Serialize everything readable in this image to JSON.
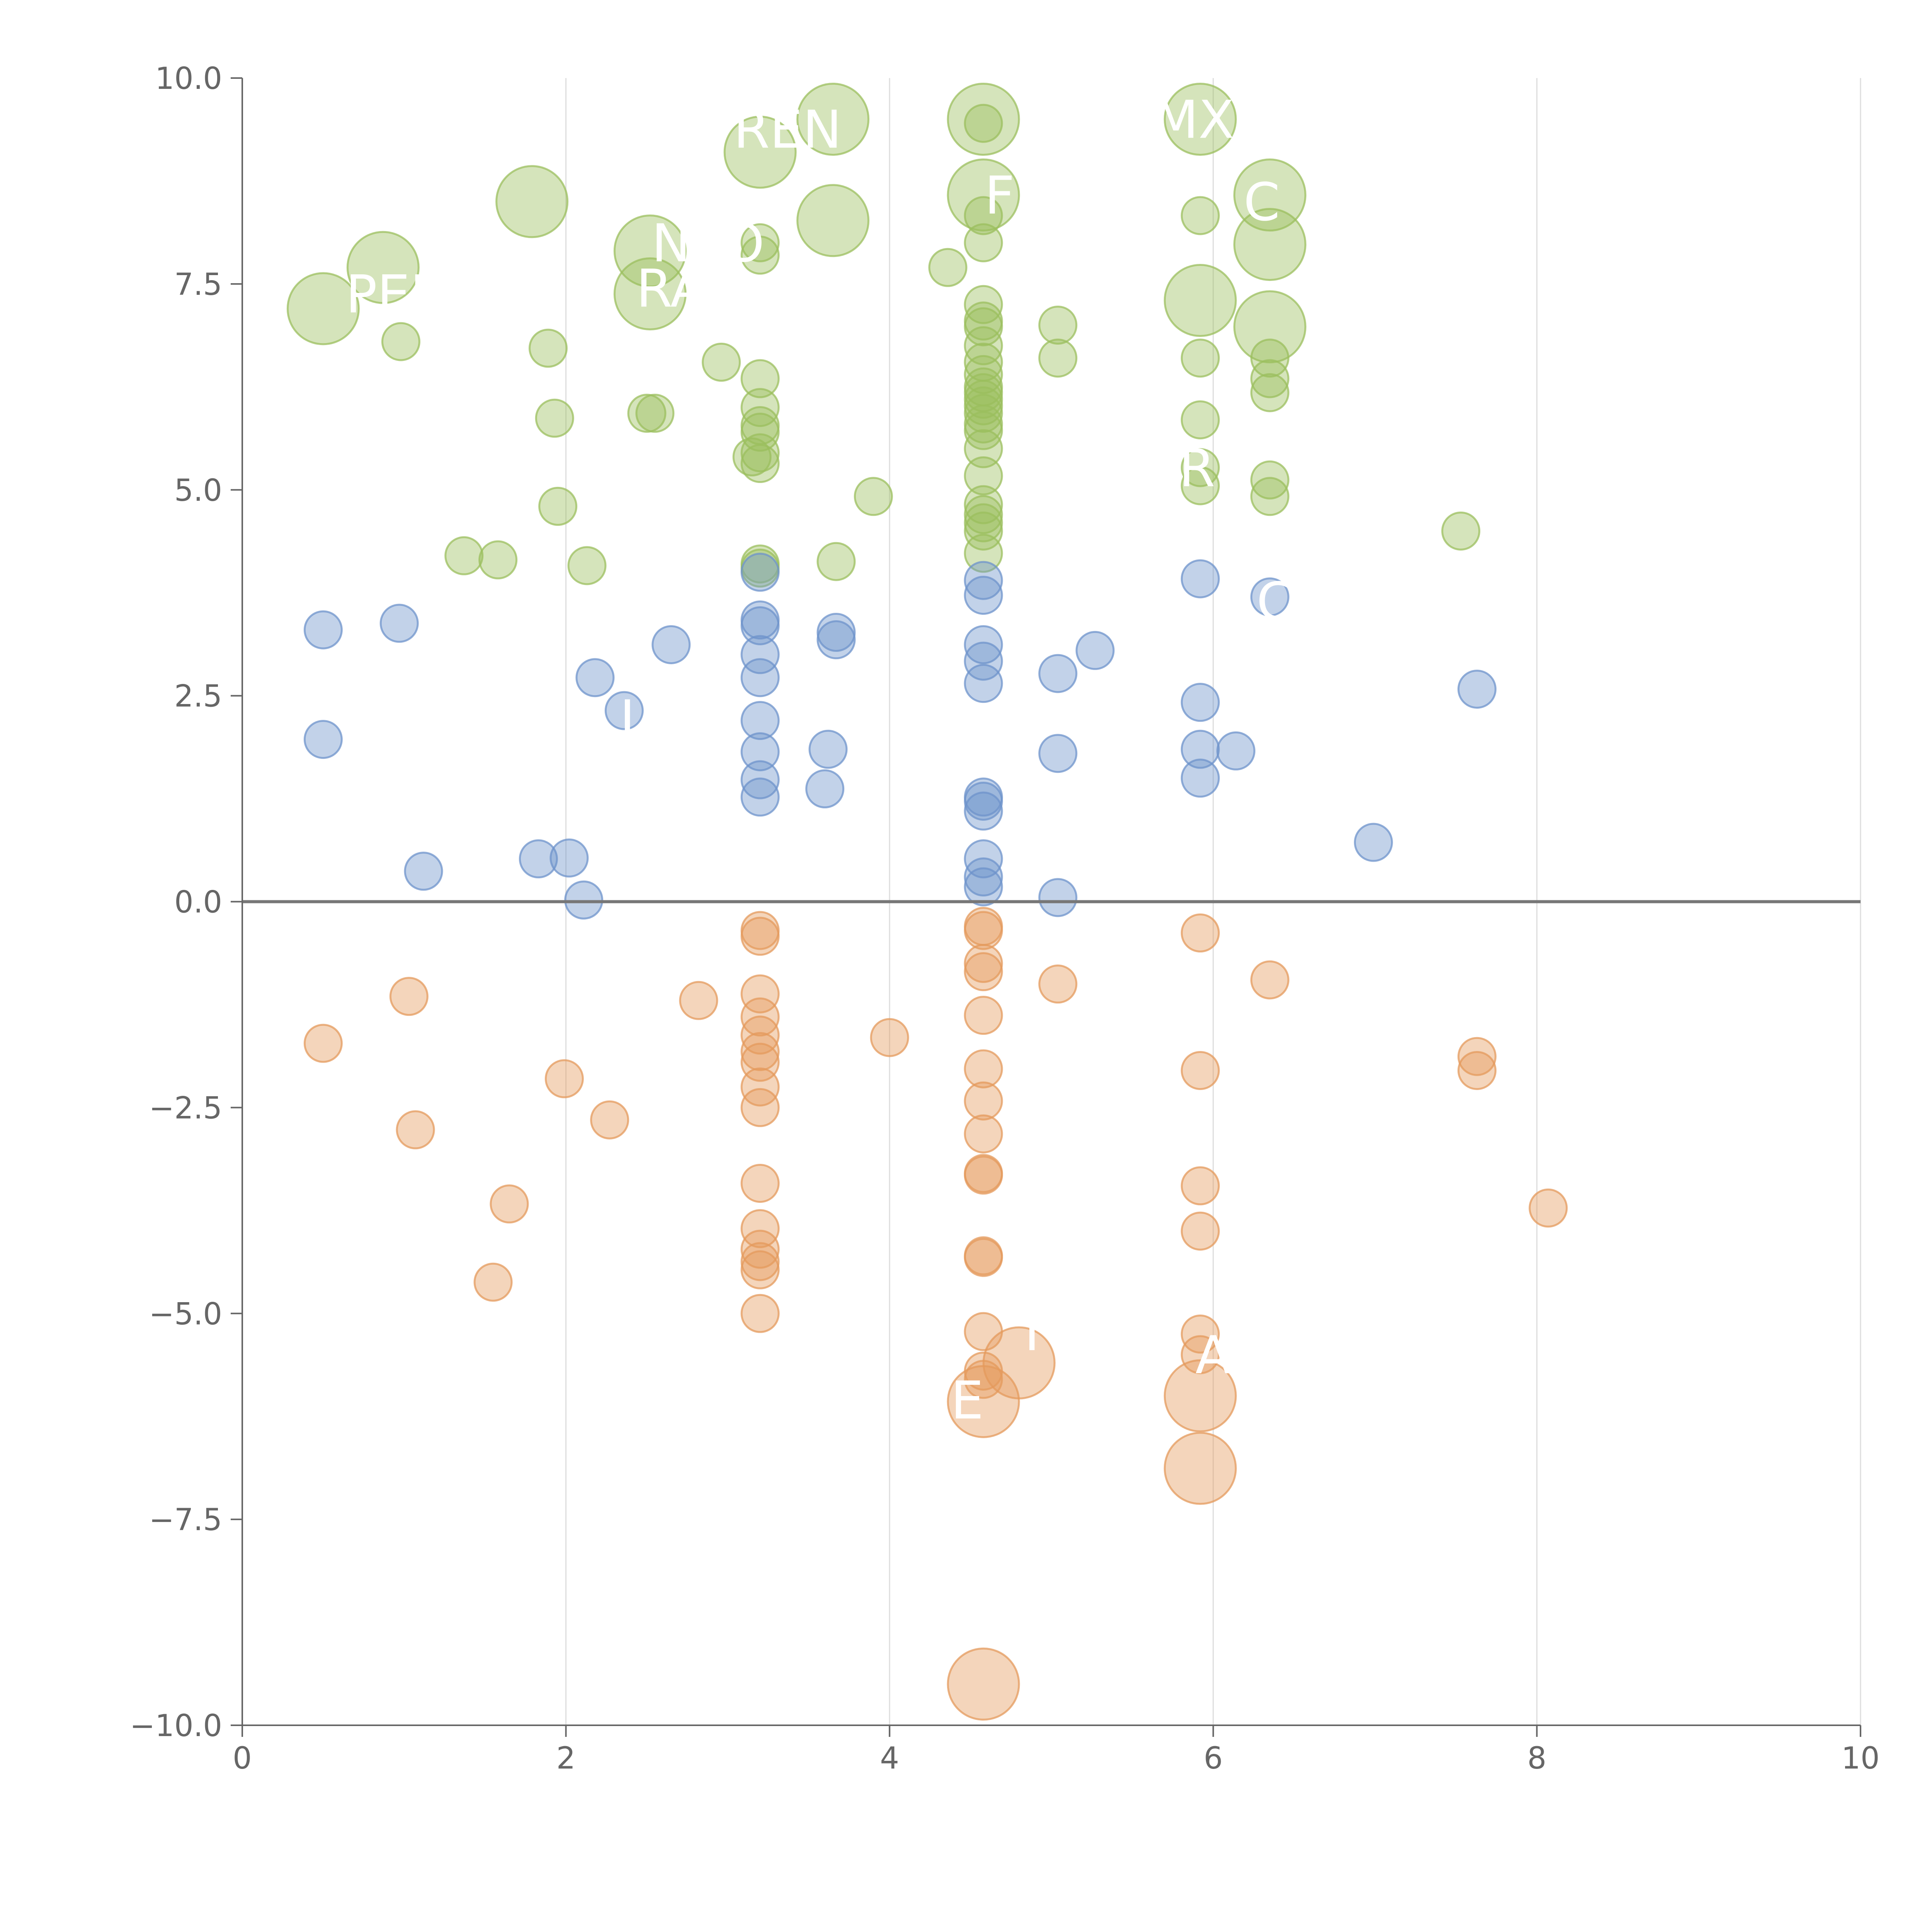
{
  "chart_data": {
    "type": "scatter",
    "xlim": [
      0,
      10
    ],
    "ylim": [
      -10,
      10
    ],
    "x_ticks": [
      0,
      2,
      4,
      6,
      8,
      10
    ],
    "x_tick_labels": [
      "0",
      "2",
      "4",
      "6",
      "8",
      "10"
    ],
    "y_ticks": [
      10,
      7.5,
      5,
      2.5,
      0,
      -2.5,
      -5,
      -7.5,
      -10
    ],
    "y_tick_labels": [
      "10.0",
      "7.5",
      "5.0",
      "2.5",
      "0.0",
      "−2.5",
      "−5.0",
      "−7.5",
      "−10.0"
    ],
    "grid_x": true,
    "grid_y": false,
    "zero_line": true,
    "colors": {
      "green": "#9bbf5e",
      "blue": "#6e93cb",
      "orange": "#e49a5c",
      "axis": "#666666",
      "grid": "#dddddd",
      "zero_line": "#777777"
    },
    "series": [
      {
        "color_key": "green",
        "points": [
          [
            0.5,
            7.2,
            3
          ],
          [
            0.87,
            7.7,
            3
          ],
          [
            0.98,
            6.8,
            1
          ],
          [
            1.37,
            4.2,
            1
          ],
          [
            1.58,
            4.15,
            1
          ],
          [
            1.79,
            8.5,
            3
          ],
          [
            1.89,
            6.72,
            1
          ],
          [
            1.93,
            5.87,
            1
          ],
          [
            1.95,
            4.8,
            1
          ],
          [
            2.13,
            4.08,
            1
          ],
          [
            2.5,
            5.93,
            1
          ],
          [
            2.55,
            5.93,
            1
          ],
          [
            2.52,
            7.9,
            3
          ],
          [
            2.52,
            7.38,
            3
          ],
          [
            2.96,
            6.55,
            1
          ],
          [
            3.15,
            5.4,
            1
          ],
          [
            3.2,
            9.1,
            3
          ],
          [
            3.2,
            8.0,
            1
          ],
          [
            3.2,
            7.85,
            1
          ],
          [
            3.2,
            6.35,
            1
          ],
          [
            3.2,
            6.0,
            1
          ],
          [
            3.2,
            5.78,
            1
          ],
          [
            3.2,
            5.7,
            1
          ],
          [
            3.2,
            5.45,
            1
          ],
          [
            3.2,
            5.32,
            1
          ],
          [
            3.2,
            4.1,
            1
          ],
          [
            3.2,
            4.05,
            1
          ],
          [
            3.65,
            9.5,
            3
          ],
          [
            3.65,
            8.27,
            3
          ],
          [
            3.67,
            4.13,
            1
          ],
          [
            3.9,
            4.92,
            1
          ],
          [
            4.36,
            7.7,
            1
          ],
          [
            4.58,
            9.5,
            3
          ],
          [
            4.58,
            9.45,
            1
          ],
          [
            4.58,
            8.58,
            3
          ],
          [
            4.58,
            8.33,
            1
          ],
          [
            4.58,
            8.0,
            1
          ],
          [
            4.58,
            7.25,
            1
          ],
          [
            4.58,
            7.05,
            1
          ],
          [
            4.58,
            6.98,
            1
          ],
          [
            4.58,
            6.75,
            1
          ],
          [
            4.58,
            6.55,
            1
          ],
          [
            4.58,
            6.4,
            1
          ],
          [
            4.58,
            6.25,
            1
          ],
          [
            4.58,
            6.18,
            1
          ],
          [
            4.58,
            6.1,
            1
          ],
          [
            4.58,
            6.02,
            1
          ],
          [
            4.58,
            5.93,
            1
          ],
          [
            4.58,
            5.8,
            1
          ],
          [
            4.58,
            5.72,
            1
          ],
          [
            4.58,
            5.5,
            1
          ],
          [
            4.58,
            5.17,
            1
          ],
          [
            4.58,
            4.82,
            1
          ],
          [
            4.58,
            4.7,
            1
          ],
          [
            4.58,
            4.6,
            1
          ],
          [
            4.58,
            4.5,
            1
          ],
          [
            4.58,
            4.23,
            1
          ],
          [
            5.04,
            7.0,
            1
          ],
          [
            5.04,
            6.6,
            1
          ],
          [
            5.92,
            9.5,
            3
          ],
          [
            5.92,
            8.33,
            1
          ],
          [
            5.92,
            7.3,
            3
          ],
          [
            5.92,
            6.6,
            1
          ],
          [
            5.92,
            5.85,
            1
          ],
          [
            5.92,
            5.27,
            1
          ],
          [
            5.92,
            5.05,
            1
          ],
          [
            6.35,
            8.58,
            3
          ],
          [
            6.35,
            7.98,
            3
          ],
          [
            6.35,
            6.98,
            3
          ],
          [
            6.35,
            6.6,
            1
          ],
          [
            6.35,
            6.35,
            1
          ],
          [
            6.35,
            6.18,
            1
          ],
          [
            6.35,
            5.12,
            1
          ],
          [
            6.35,
            4.92,
            1
          ],
          [
            7.53,
            4.5,
            1
          ]
        ]
      },
      {
        "color_key": "blue",
        "points": [
          [
            0.5,
            3.3,
            1
          ],
          [
            0.5,
            1.97,
            1
          ],
          [
            0.97,
            3.38,
            1
          ],
          [
            1.12,
            0.37,
            1
          ],
          [
            1.83,
            0.52,
            1
          ],
          [
            2.02,
            0.53,
            1
          ],
          [
            2.11,
            0.02,
            1
          ],
          [
            2.18,
            2.72,
            1
          ],
          [
            2.36,
            2.32,
            1
          ],
          [
            2.65,
            3.12,
            1
          ],
          [
            3.2,
            4.0,
            1
          ],
          [
            3.2,
            3.42,
            1
          ],
          [
            3.2,
            3.35,
            1
          ],
          [
            3.2,
            3.0,
            1
          ],
          [
            3.2,
            2.72,
            1
          ],
          [
            3.2,
            2.2,
            1
          ],
          [
            3.2,
            1.82,
            1
          ],
          [
            3.2,
            1.48,
            1
          ],
          [
            3.2,
            1.27,
            1
          ],
          [
            3.6,
            1.37,
            1
          ],
          [
            3.62,
            1.85,
            1
          ],
          [
            3.67,
            3.27,
            1
          ],
          [
            3.67,
            3.18,
            1
          ],
          [
            4.58,
            3.9,
            1
          ],
          [
            4.58,
            3.72,
            1
          ],
          [
            4.58,
            3.12,
            1
          ],
          [
            4.58,
            2.92,
            1
          ],
          [
            4.58,
            2.65,
            1
          ],
          [
            4.58,
            1.27,
            1
          ],
          [
            4.58,
            1.22,
            1
          ],
          [
            4.58,
            1.1,
            1
          ],
          [
            4.58,
            0.52,
            1
          ],
          [
            4.58,
            0.3,
            1
          ],
          [
            4.58,
            0.18,
            1
          ],
          [
            5.04,
            2.77,
            1
          ],
          [
            5.04,
            1.8,
            1
          ],
          [
            5.04,
            0.05,
            1
          ],
          [
            5.27,
            3.05,
            1
          ],
          [
            5.92,
            3.92,
            1
          ],
          [
            5.92,
            2.42,
            1
          ],
          [
            5.92,
            1.85,
            1
          ],
          [
            5.92,
            1.5,
            1
          ],
          [
            6.14,
            1.83,
            1
          ],
          [
            6.35,
            3.7,
            1
          ],
          [
            6.99,
            0.72,
            1
          ],
          [
            7.63,
            2.58,
            1
          ]
        ]
      },
      {
        "color_key": "orange",
        "points": [
          [
            0.5,
            -1.72,
            1
          ],
          [
            1.03,
            -1.15,
            1
          ],
          [
            1.07,
            -2.77,
            1
          ],
          [
            1.55,
            -4.62,
            1
          ],
          [
            1.65,
            -3.67,
            1
          ],
          [
            1.99,
            -2.15,
            1
          ],
          [
            2.27,
            -2.65,
            1
          ],
          [
            2.82,
            -1.2,
            1
          ],
          [
            3.2,
            -0.35,
            1
          ],
          [
            3.2,
            -0.42,
            1
          ],
          [
            3.2,
            -1.12,
            1
          ],
          [
            3.2,
            -1.4,
            1
          ],
          [
            3.2,
            -1.62,
            1
          ],
          [
            3.2,
            -1.82,
            1
          ],
          [
            3.2,
            -1.95,
            1
          ],
          [
            3.2,
            -2.25,
            1
          ],
          [
            3.2,
            -2.5,
            1
          ],
          [
            3.2,
            -3.42,
            1
          ],
          [
            3.2,
            -3.97,
            1
          ],
          [
            3.2,
            -4.22,
            1
          ],
          [
            3.2,
            -4.37,
            1
          ],
          [
            3.2,
            -4.47,
            1
          ],
          [
            3.2,
            -5.0,
            1
          ],
          [
            4.0,
            -1.65,
            1
          ],
          [
            4.58,
            -0.3,
            1
          ],
          [
            4.58,
            -0.35,
            1
          ],
          [
            4.58,
            -0.75,
            1
          ],
          [
            4.58,
            -0.85,
            1
          ],
          [
            4.58,
            -1.38,
            1
          ],
          [
            4.58,
            -2.03,
            1
          ],
          [
            4.58,
            -2.42,
            1
          ],
          [
            4.58,
            -2.82,
            1
          ],
          [
            4.58,
            -3.3,
            1
          ],
          [
            4.58,
            -3.32,
            1
          ],
          [
            4.58,
            -4.3,
            1
          ],
          [
            4.58,
            -4.32,
            1
          ],
          [
            4.58,
            -5.22,
            1
          ],
          [
            4.58,
            -5.7,
            1
          ],
          [
            4.58,
            -5.8,
            1
          ],
          [
            4.58,
            -6.07,
            3
          ],
          [
            4.58,
            -9.5,
            3
          ],
          [
            4.8,
            -5.6,
            3
          ],
          [
            5.04,
            -1.0,
            1
          ],
          [
            5.92,
            -0.38,
            1
          ],
          [
            5.92,
            -2.05,
            1
          ],
          [
            5.92,
            -3.45,
            1
          ],
          [
            5.92,
            -4.0,
            1
          ],
          [
            5.92,
            -5.25,
            1
          ],
          [
            5.92,
            -5.5,
            1
          ],
          [
            5.92,
            -6.0,
            3
          ],
          [
            5.92,
            -6.88,
            3
          ],
          [
            6.35,
            -0.95,
            1
          ],
          [
            7.63,
            -1.88,
            1
          ],
          [
            7.63,
            -2.05,
            1
          ],
          [
            8.07,
            -3.72,
            1
          ]
        ]
      }
    ],
    "point_labels": [
      {
        "text": "PER",
        "x": 0.95,
        "y": 7.38
      },
      {
        "text": "REN",
        "x": 3.37,
        "y": 9.38
      },
      {
        "text": "MX",
        "x": 5.88,
        "y": 9.5
      },
      {
        "text": "F",
        "x": 4.68,
        "y": 8.58
      },
      {
        "text": "C",
        "x": 6.3,
        "y": 8.5
      },
      {
        "text": "N",
        "x": 2.65,
        "y": 8.0
      },
      {
        "text": "O",
        "x": 3.1,
        "y": 8.0
      },
      {
        "text": "RA",
        "x": 2.65,
        "y": 7.45
      },
      {
        "text": "R",
        "x": 5.9,
        "y": 5.27
      },
      {
        "text": "C",
        "x": 6.38,
        "y": 3.65
      },
      {
        "text": "J",
        "x": 2.38,
        "y": 2.22
      },
      {
        "text": "E",
        "x": 4.48,
        "y": -6.05
      },
      {
        "text": "A",
        "x": 6.0,
        "y": -5.5
      },
      {
        "text": "T",
        "x": 4.88,
        "y": -5.22
      }
    ]
  }
}
